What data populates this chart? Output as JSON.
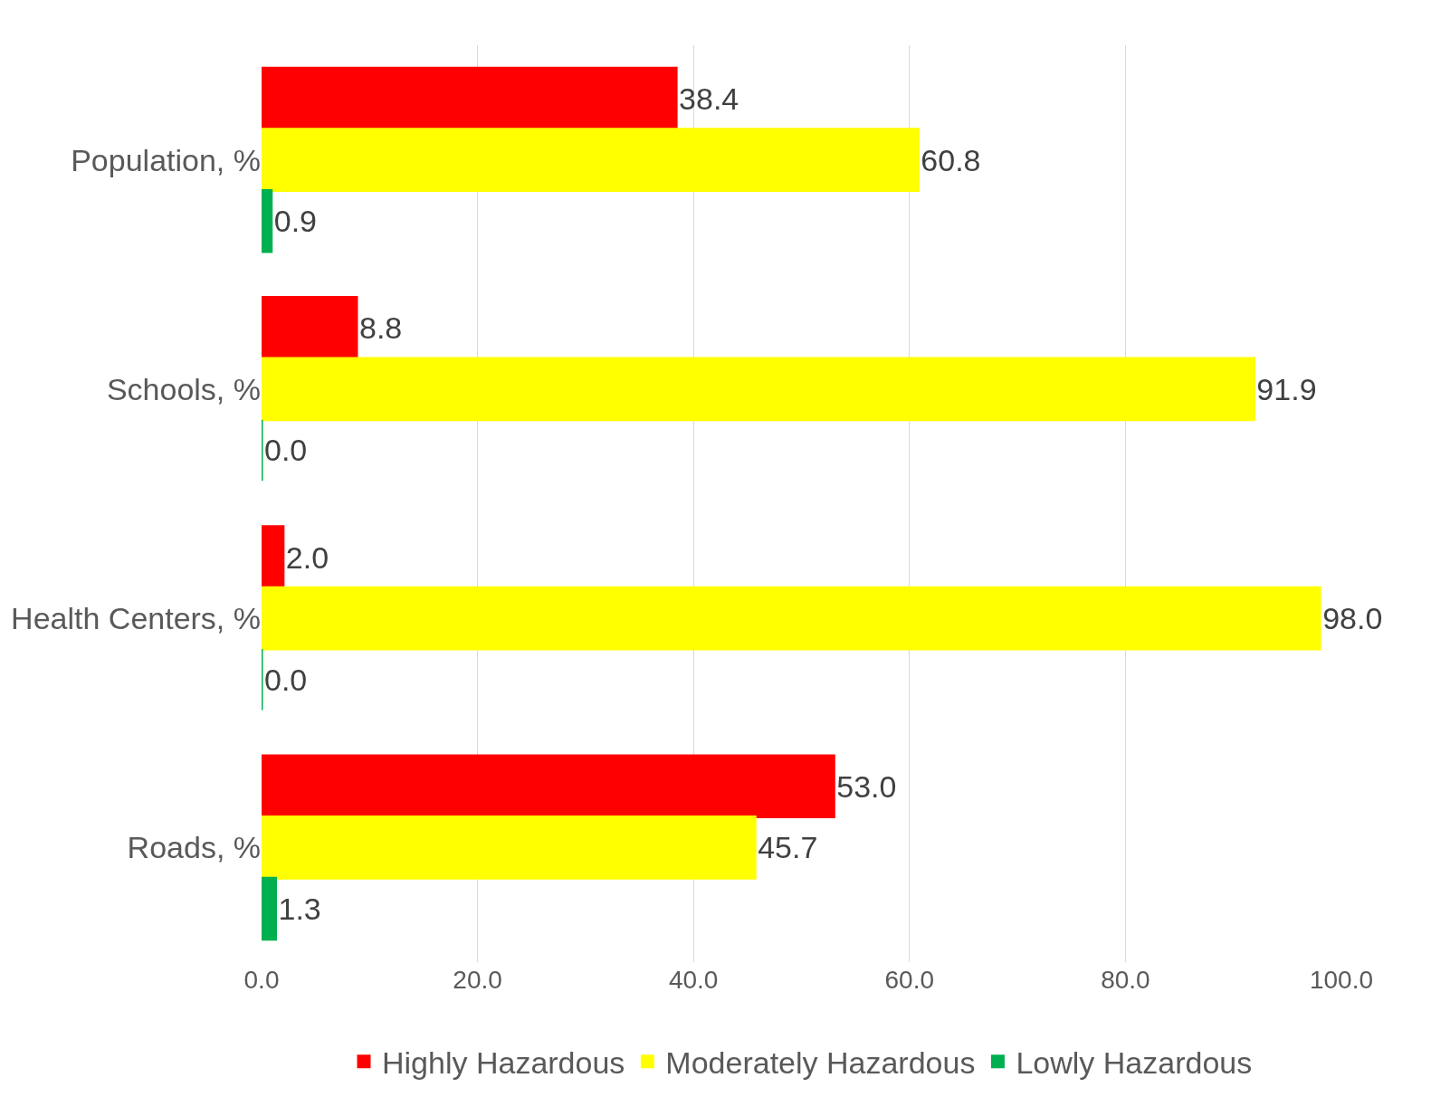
{
  "chart_data": {
    "type": "bar",
    "orientation": "horizontal",
    "categories": [
      "Population, %",
      "Schools, %",
      "Health Centers, %",
      "Roads, %"
    ],
    "series": [
      {
        "name": "Highly Hazardous",
        "color": "#ff0000",
        "values": [
          38.4,
          8.8,
          2.0,
          53.0
        ],
        "value_labels": [
          "38.4",
          "8.8",
          "2.0",
          "53.0"
        ]
      },
      {
        "name": "Moderately Hazardous",
        "color": "#ffff00",
        "values": [
          60.8,
          91.9,
          98.0,
          45.7
        ],
        "value_labels": [
          "60.8",
          "91.9",
          "98.0",
          "45.7"
        ]
      },
      {
        "name": "Lowly Hazardous",
        "color": "#00b050",
        "values": [
          0.9,
          0.0,
          0.0,
          1.3
        ],
        "value_labels": [
          "0.9",
          "0.0",
          "0.0",
          "1.3"
        ]
      }
    ],
    "xlim": [
      0,
      100
    ],
    "xticks": [
      {
        "value": 0,
        "label": "0.0"
      },
      {
        "value": 20,
        "label": "20.0"
      },
      {
        "value": 40,
        "label": "40.0"
      },
      {
        "value": 60,
        "label": "60.0"
      },
      {
        "value": 80,
        "label": "80.0"
      },
      {
        "value": 100,
        "label": "100.0"
      }
    ],
    "grid": "x",
    "legend": "bottom"
  }
}
